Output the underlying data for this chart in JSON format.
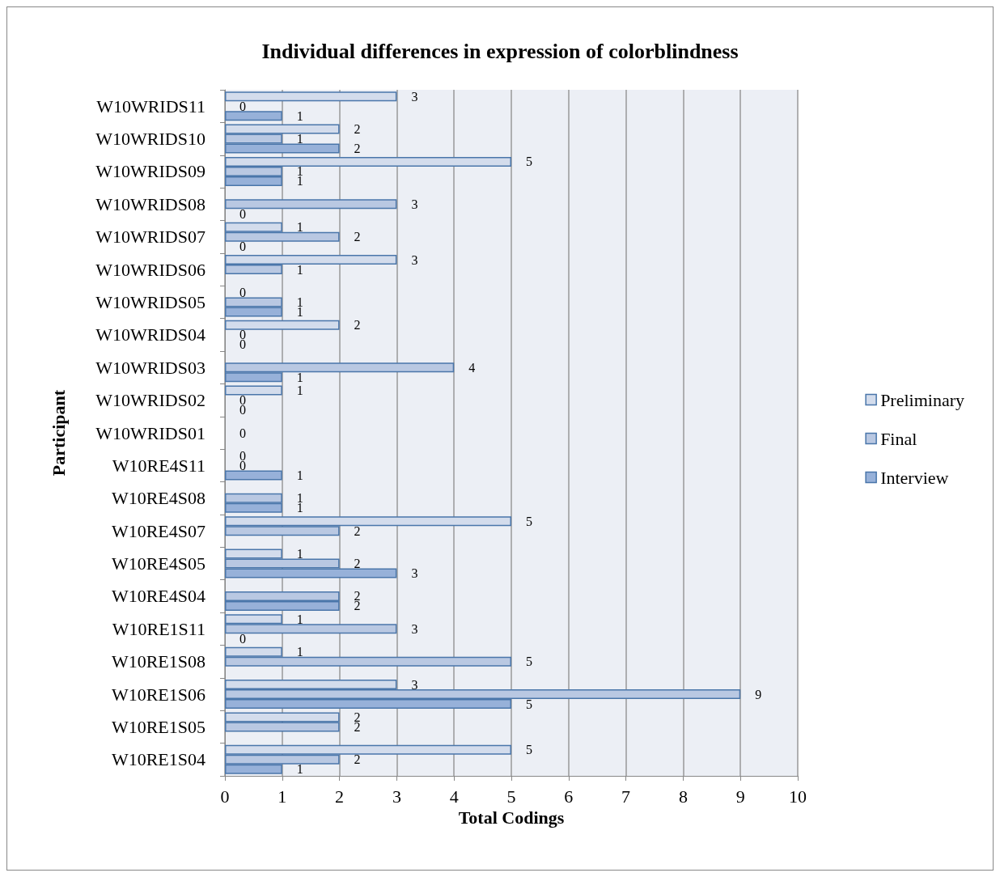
{
  "chart_data": {
    "type": "bar",
    "orientation": "horizontal",
    "title": "Individual differences in expression of colorblindness",
    "xlabel": "Total Codings",
    "ylabel": "Participant",
    "categories": [
      "W10WRIDS11",
      "W10WRIDS10",
      "W10WRIDS09",
      "W10WRIDS08",
      "W10WRIDS07",
      "W10WRIDS06",
      "W10WRIDS05",
      "W10WRIDS04",
      "W10WRIDS03",
      "W10WRIDS02",
      "W10WRIDS01",
      "W10RE4S11",
      "W10RE4S08",
      "W10RE4S07",
      "W10RE4S05",
      "W10RE4S04",
      "W10RE1S11",
      "W10RE1S08",
      "W10RE1S06",
      "W10RE1S05",
      "W10RE1S04"
    ],
    "series": [
      {
        "name": "Preliminary",
        "color": "#d3dcec",
        "values": [
          3,
          2,
          5,
          null,
          1,
          3,
          0,
          2,
          null,
          1,
          null,
          0,
          null,
          5,
          1,
          null,
          1,
          1,
          3,
          2,
          5
        ]
      },
      {
        "name": "Final",
        "color": "#b9c8e2",
        "values": [
          0,
          1,
          1,
          3,
          2,
          1,
          1,
          0,
          4,
          0,
          0,
          0,
          1,
          2,
          2,
          2,
          3,
          5,
          9,
          2,
          2
        ]
      },
      {
        "name": "Interview",
        "color": "#97b1d9",
        "values": [
          1,
          2,
          1,
          0,
          0,
          null,
          1,
          0,
          1,
          0,
          null,
          1,
          1,
          null,
          3,
          2,
          0,
          null,
          5,
          null,
          1
        ]
      }
    ],
    "xlim": [
      0,
      10
    ],
    "xticks": [
      0,
      1,
      2,
      3,
      4,
      5,
      6,
      7,
      8,
      9,
      10
    ],
    "grid": "x",
    "legend": "right",
    "data_labels": true
  }
}
